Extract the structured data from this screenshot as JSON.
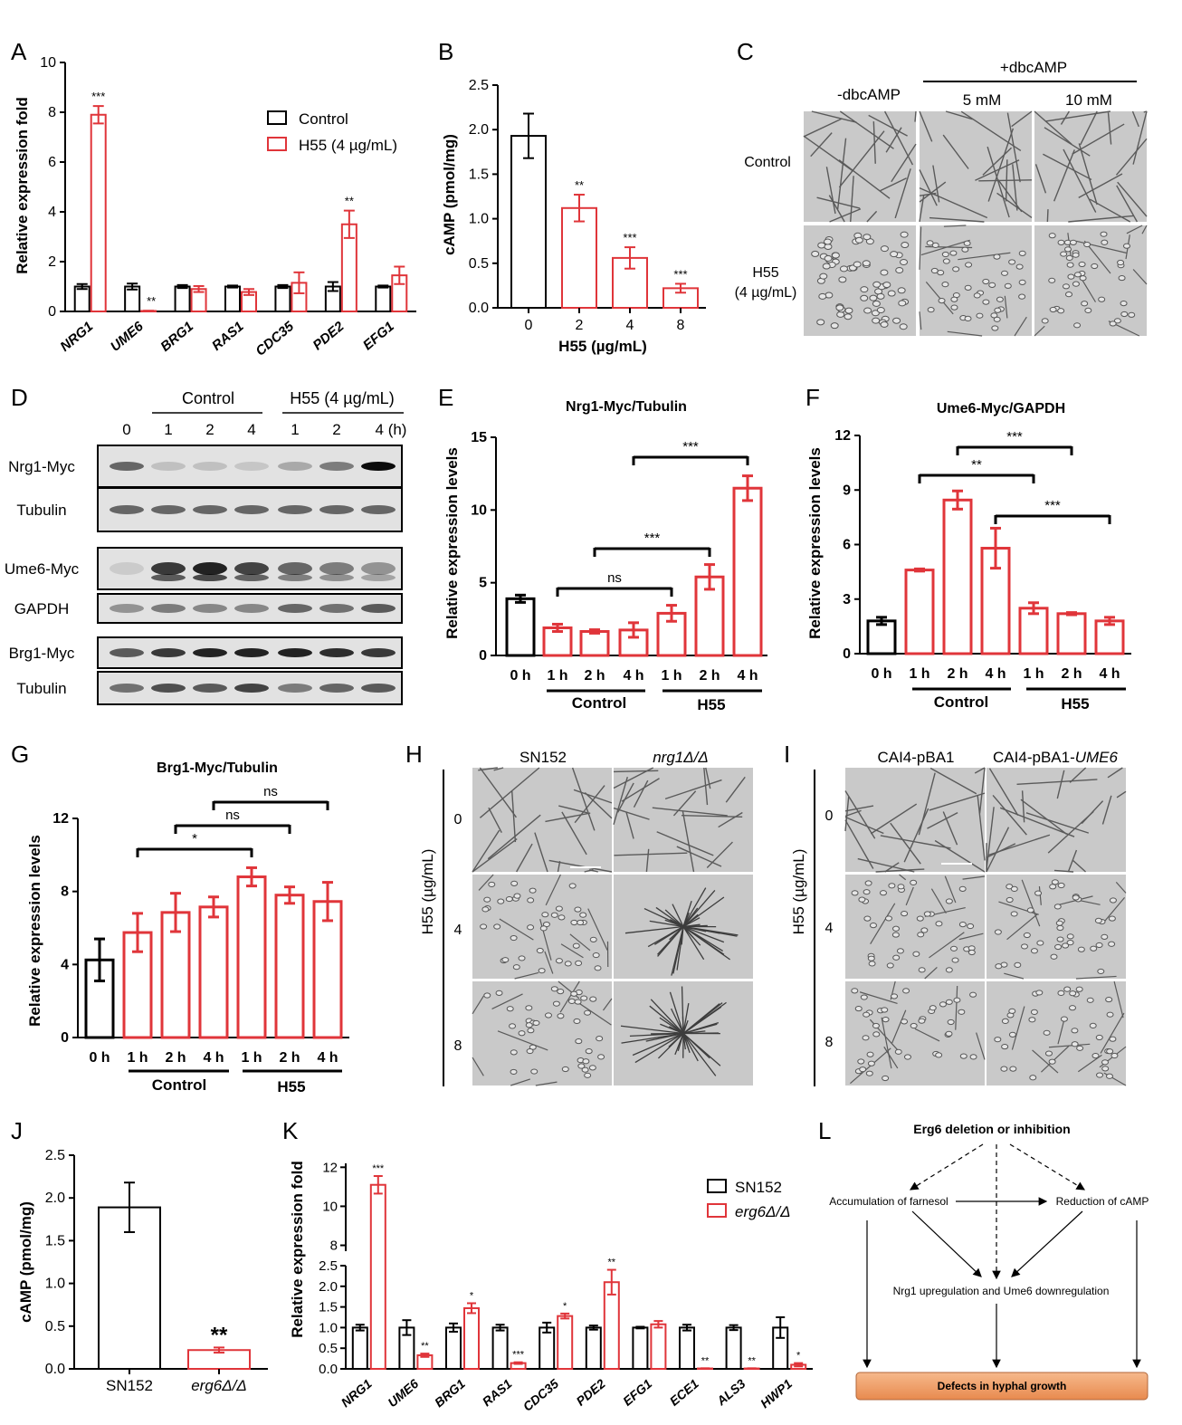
{
  "colors": {
    "control": "#000000",
    "treated": "#e0353a",
    "panel_bg": "#c8c8c8",
    "box_fill": "#f0a06a"
  },
  "panels": {
    "A": "A",
    "B": "B",
    "C": "C",
    "D": "D",
    "E": "E",
    "F": "F",
    "G": "G",
    "H": "H",
    "I": "I",
    "J": "J",
    "K": "K",
    "L": "L"
  },
  "chart_data": [
    {
      "id": "A",
      "type": "bar",
      "ylabel": "Relative expression fold",
      "ylim": [
        0,
        10
      ],
      "yticks": [
        "0",
        "2",
        "4",
        "6",
        "8",
        "10"
      ],
      "categories": [
        "NRG1",
        "UME6",
        "BRG1",
        "RAS1",
        "CDC35",
        "PDE2",
        "EFG1"
      ],
      "legend": [
        "Control",
        "H55 (4 µg/mL)"
      ],
      "series": [
        {
          "name": "Control",
          "values": [
            1.0,
            1.0,
            1.0,
            1.0,
            1.0,
            1.0,
            1.0
          ],
          "err": [
            0.1,
            0.12,
            0.06,
            0.04,
            0.06,
            0.18,
            0.04
          ]
        },
        {
          "name": "H55 (4 µg/mL)",
          "values": [
            7.9,
            0.02,
            0.9,
            0.78,
            1.15,
            3.5,
            1.45
          ],
          "err": [
            0.35,
            0.01,
            0.12,
            0.12,
            0.42,
            0.55,
            0.35
          ]
        }
      ],
      "sig": [
        "***",
        "**",
        "",
        "",
        "",
        "**",
        ""
      ]
    },
    {
      "id": "B",
      "type": "bar",
      "xlabel": "H55 (µg/mL)",
      "ylabel": "cAMP (pmol/mg)",
      "ylim": [
        0,
        2.5
      ],
      "yticks": [
        "0.0",
        "0.5",
        "1.0",
        "1.5",
        "2.0",
        "2.5"
      ],
      "categories": [
        "0",
        "2",
        "4",
        "8"
      ],
      "values": [
        1.93,
        1.12,
        0.56,
        0.22
      ],
      "err": [
        0.25,
        0.15,
        0.12,
        0.05
      ],
      "sig": [
        "",
        "**",
        "***",
        "***"
      ]
    },
    {
      "id": "E",
      "type": "bar",
      "title": "Nrg1-Myc/Tubulin",
      "ylabel": "Relative expression levels",
      "ylim": [
        0,
        15
      ],
      "yticks": [
        "0",
        "5",
        "10",
        "15"
      ],
      "categories": [
        "0 h",
        "1 h",
        "2 h",
        "4 h",
        "1 h",
        "2 h",
        "4 h"
      ],
      "groups": [
        "Control",
        "H55"
      ],
      "values": [
        3.9,
        1.9,
        1.65,
        1.75,
        2.9,
        5.4,
        11.5
      ],
      "err": [
        0.25,
        0.25,
        0.12,
        0.5,
        0.55,
        0.85,
        0.85
      ],
      "brackets": [
        {
          "from": 1,
          "to": 4,
          "label": "ns"
        },
        {
          "from": 2,
          "to": 5,
          "label": "***"
        },
        {
          "from": 3,
          "to": 6,
          "label": "***"
        }
      ]
    },
    {
      "id": "F",
      "type": "bar",
      "title": "Ume6-Myc/GAPDH",
      "ylabel": "Relative expression levels",
      "ylim": [
        0,
        12
      ],
      "yticks": [
        "0",
        "3",
        "6",
        "9",
        "12"
      ],
      "categories": [
        "0 h",
        "1 h",
        "2 h",
        "4 h",
        "1 h",
        "2 h",
        "4 h"
      ],
      "groups": [
        "Control",
        "H55"
      ],
      "values": [
        1.8,
        4.6,
        8.45,
        5.8,
        2.5,
        2.2,
        1.8
      ],
      "err": [
        0.2,
        0.06,
        0.5,
        1.1,
        0.3,
        0.06,
        0.2
      ],
      "brackets": [
        {
          "from": 1,
          "to": 4,
          "label": "**"
        },
        {
          "from": 2,
          "to": 5,
          "label": "***"
        },
        {
          "from": 3,
          "to": 6,
          "label": "***"
        }
      ]
    },
    {
      "id": "G",
      "type": "bar",
      "title": "Brg1-Myc/Tubulin",
      "ylabel": "Relative expression levels",
      "ylim": [
        0,
        12
      ],
      "yticks": [
        "0",
        "4",
        "8",
        "12"
      ],
      "categories": [
        "0 h",
        "1 h",
        "2 h",
        "4 h",
        "1 h",
        "2 h",
        "4 h"
      ],
      "groups": [
        "Control",
        "H55"
      ],
      "values": [
        4.25,
        5.75,
        6.85,
        7.15,
        8.8,
        7.8,
        7.45
      ],
      "err": [
        1.15,
        1.05,
        1.05,
        0.55,
        0.5,
        0.45,
        1.05
      ],
      "brackets": [
        {
          "from": 1,
          "to": 4,
          "label": "*"
        },
        {
          "from": 2,
          "to": 5,
          "label": "ns"
        },
        {
          "from": 3,
          "to": 6,
          "label": "ns"
        }
      ]
    },
    {
      "id": "J",
      "type": "bar",
      "ylabel": "cAMP (pmol/mg)",
      "ylim": [
        0,
        2.5
      ],
      "yticks": [
        "0.0",
        "0.5",
        "1.0",
        "1.5",
        "2.0",
        "2.5"
      ],
      "categories": [
        "SN152",
        "erg6Δ/Δ"
      ],
      "values": [
        1.89,
        0.22
      ],
      "err": [
        0.29,
        0.03
      ],
      "sig": [
        "",
        "**"
      ]
    },
    {
      "id": "K",
      "type": "bar",
      "ylabel": "Relative expression fold",
      "ylim": [
        0,
        12
      ],
      "yticks_low": [
        "0.0",
        "0.5",
        "1.0",
        "1.5",
        "2.0",
        "2.5"
      ],
      "yticks_high": [
        "8",
        "10",
        "12"
      ],
      "categories": [
        "NRG1",
        "UME6",
        "BRG1",
        "RAS1",
        "CDC35",
        "PDE2",
        "EFG1",
        "ECE1",
        "ALS3",
        "HWP1"
      ],
      "legend": [
        "SN152",
        "erg6Δ/Δ"
      ],
      "series": [
        {
          "name": "SN152",
          "values": [
            1.0,
            1.0,
            1.0,
            1.0,
            1.0,
            1.0,
            1.0,
            1.0,
            1.0,
            1.0
          ],
          "err": [
            0.07,
            0.18,
            0.1,
            0.07,
            0.12,
            0.05,
            0.02,
            0.07,
            0.06,
            0.25
          ]
        },
        {
          "name": "erg6Δ/Δ",
          "values": [
            11.1,
            0.33,
            1.47,
            0.14,
            1.28,
            2.1,
            1.08,
            0.01,
            0.01,
            0.1
          ],
          "err": [
            0.45,
            0.04,
            0.12,
            0.02,
            0.06,
            0.3,
            0.08,
            0.005,
            0.005,
            0.04
          ]
        }
      ],
      "sig": [
        "***",
        "**",
        "*",
        "***",
        "*",
        "**",
        "",
        "**",
        "**",
        "*"
      ]
    }
  ],
  "panelA": {
    "yaxis_label": "Relative expression fold",
    "legend_control": "Control",
    "legend_h55": "H55 (4 µg/mL)"
  },
  "panelB": {
    "xaxis_label": "H55 (µg/mL)",
    "yaxis_label": "cAMP (pmol/mg)"
  },
  "panelC": {
    "header": "+dbcAMP",
    "minus": "-dbcAMP",
    "c5": "5 mM",
    "c10": "10 mM",
    "row1": "Control",
    "row2a": "H55",
    "row2b": "(4 µg/mL)"
  },
  "panelD": {
    "control": "Control",
    "h55": "H55 (4 µg/mL)",
    "times": [
      "0",
      "1",
      "2",
      "4",
      "1",
      "2",
      "4 (h)"
    ],
    "rows": [
      "Nrg1-Myc",
      "Tubulin",
      "Ume6-Myc",
      "GAPDH",
      "Brg1-Myc",
      "Tubulin"
    ]
  },
  "panelE": {
    "title": "Nrg1-Myc/Tubulin",
    "yaxis_label": "Relative expression levels",
    "group1": "Control",
    "group2": "H55"
  },
  "panelF": {
    "title": "Ume6-Myc/GAPDH",
    "yaxis_label": "Relative expression levels",
    "group1": "Control",
    "group2": "H55"
  },
  "panelG": {
    "title": "Brg1-Myc/Tubulin",
    "yaxis_label": "Relative expression levels",
    "group1": "Control",
    "group2": "H55"
  },
  "panelH": {
    "col1": "SN152",
    "col2": "nrg1Δ/Δ",
    "ylabel": "H55 (µg/mL)",
    "rows": [
      "0",
      "4",
      "8"
    ]
  },
  "panelI": {
    "col1": "CAI4-pBA1",
    "col2a": "CAI4-pBA1-",
    "col2b": "UME6",
    "ylabel": "H55 (µg/mL)",
    "rows": [
      "0",
      "4",
      "8"
    ]
  },
  "panelJ": {
    "yaxis_label": "cAMP (pmol/mg)"
  },
  "panelK": {
    "yaxis_label": "Relative expression fold",
    "legend1": "SN152",
    "legend2": "erg6Δ/Δ"
  },
  "panelL": {
    "top": "Erg6 deletion or inhibition",
    "left": "Accumulation of farnesol",
    "right": "Reduction of cAMP",
    "middle": "Nrg1 upregulation and Ume6 downregulation",
    "bottom": "Defects in hyphal growth"
  }
}
